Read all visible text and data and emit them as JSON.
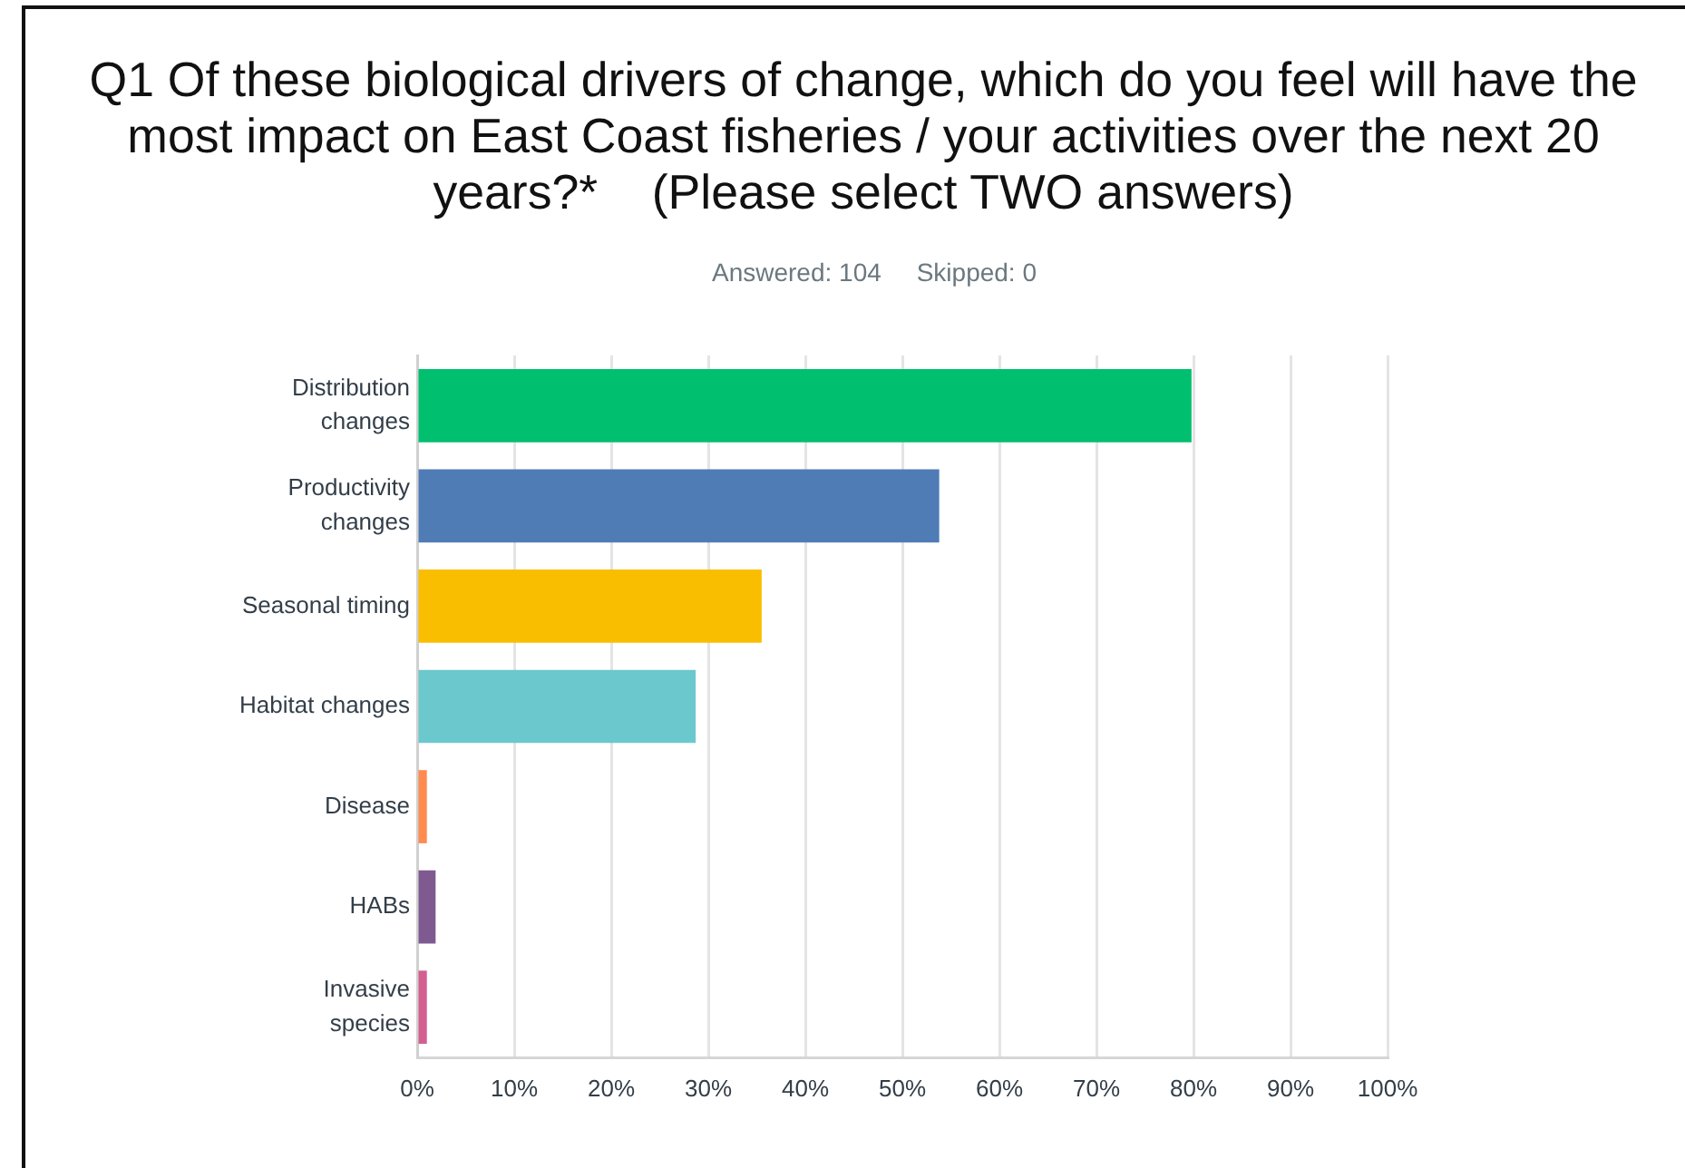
{
  "chart_data": {
    "type": "bar",
    "orientation": "horizontal",
    "title": "Q1 Of these biological drivers of change, which do you feel will have the most impact on East Coast fisheries / your activities over the next 20 years?*    (Please select TWO answers)",
    "subtitle": "Answered: 104     Skipped: 0",
    "categories": [
      "Distribution\nchanges",
      "Productivity\nchanges",
      "Seasonal timing",
      "Habitat changes",
      "Disease",
      "HABs",
      "Invasive\nspecies"
    ],
    "values": [
      79.8,
      53.8,
      35.5,
      28.7,
      1,
      1.9,
      1
    ],
    "colors": [
      "#00bf6f",
      "#507cb6",
      "#f9be00",
      "#6bc8cd",
      "#ff8b4f",
      "#7f5a91",
      "#d25f90"
    ],
    "xlim": [
      0,
      100
    ],
    "xticks": [
      {
        "value": 0,
        "label": "0%"
      },
      {
        "value": 10,
        "label": "10%"
      },
      {
        "value": 20,
        "label": "20%"
      },
      {
        "value": 30,
        "label": "30%"
      },
      {
        "value": 40,
        "label": "40%"
      },
      {
        "value": 50,
        "label": "50%"
      },
      {
        "value": 60,
        "label": "60%"
      },
      {
        "value": 70,
        "label": "70%"
      },
      {
        "value": 80,
        "label": "80%"
      },
      {
        "value": 90,
        "label": "90%"
      },
      {
        "value": 100,
        "label": "100%"
      }
    ],
    "grid": "x"
  }
}
